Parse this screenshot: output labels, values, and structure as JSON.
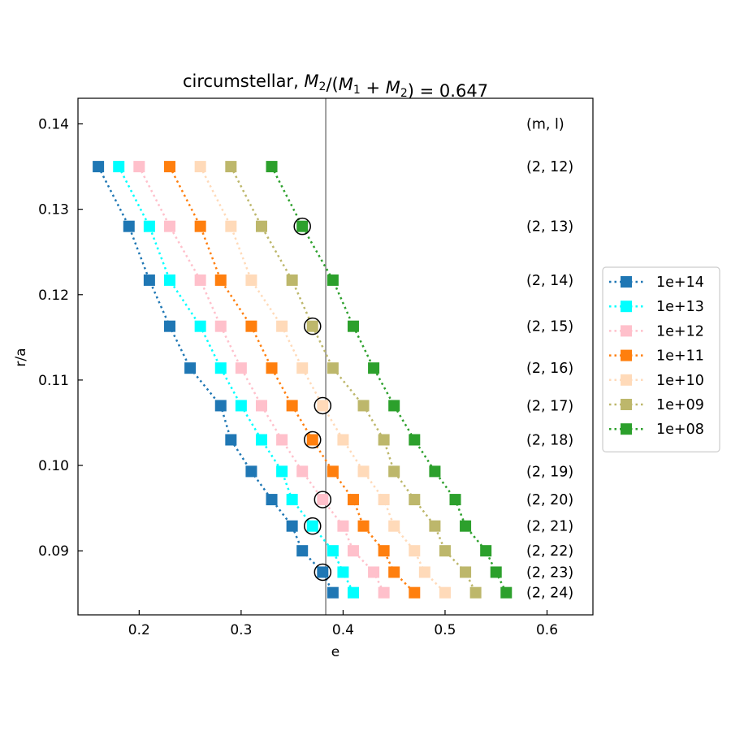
{
  "chart_data": {
    "type": "scatter",
    "title_prefix": "circumstellar, ",
    "title_fraction": "M",
    "title": "circumstellar, M₂/(M₁ + M₂) = 0.647",
    "xlabel": "e",
    "ylabel": "r/a",
    "xlim": [
      0.14,
      0.645
    ],
    "ylim": [
      0.0825,
      0.143
    ],
    "xticks": [
      "0.2",
      "0.3",
      "0.4",
      "0.5",
      "0.6"
    ],
    "yticks": [
      "0.09",
      "0.10",
      "0.11",
      "0.12",
      "0.13",
      "0.14"
    ],
    "vertical_line_x": 0.383,
    "grid": false,
    "legend_position": "outside-right",
    "row_labels_header": "(m, l)",
    "rows": [
      {
        "label": "(2, 12)",
        "y": 0.135
      },
      {
        "label": "(2, 13)",
        "y": 0.128
      },
      {
        "label": "(2, 14)",
        "y": 0.1217
      },
      {
        "label": "(2, 15)",
        "y": 0.1163
      },
      {
        "label": "(2, 16)",
        "y": 0.1114
      },
      {
        "label": "(2, 17)",
        "y": 0.107
      },
      {
        "label": "(2, 18)",
        "y": 0.103
      },
      {
        "label": "(2, 19)",
        "y": 0.0993
      },
      {
        "label": "(2, 20)",
        "y": 0.096
      },
      {
        "label": "(2, 21)",
        "y": 0.0929
      },
      {
        "label": "(2, 22)",
        "y": 0.09
      },
      {
        "label": "(2, 23)",
        "y": 0.0875
      },
      {
        "label": "(2, 24)",
        "y": 0.0851
      }
    ],
    "series": [
      {
        "name": "1e+14",
        "color": "#1f77b4",
        "x": [
          0.16,
          0.19,
          0.21,
          0.23,
          0.25,
          0.28,
          0.29,
          0.31,
          0.33,
          0.35,
          0.36,
          0.38,
          0.39
        ]
      },
      {
        "name": "1e+13",
        "color": "#00ffff",
        "x": [
          0.18,
          0.21,
          0.23,
          0.26,
          0.28,
          0.3,
          0.32,
          0.34,
          0.35,
          0.37,
          0.39,
          0.4,
          0.41
        ]
      },
      {
        "name": "1e+12",
        "color": "#ffc0cb",
        "x": [
          0.2,
          0.23,
          0.26,
          0.28,
          0.3,
          0.32,
          0.34,
          0.36,
          0.38,
          0.4,
          0.41,
          0.43,
          0.44
        ]
      },
      {
        "name": "1e+11",
        "color": "#ff7f0e",
        "x": [
          0.23,
          0.26,
          0.28,
          0.31,
          0.33,
          0.35,
          0.37,
          0.39,
          0.41,
          0.42,
          0.44,
          0.45,
          0.47
        ]
      },
      {
        "name": "1e+10",
        "color": "#ffdab9",
        "x": [
          0.26,
          0.29,
          0.31,
          0.34,
          0.36,
          0.38,
          0.4,
          0.42,
          0.44,
          0.45,
          0.47,
          0.48,
          0.5
        ]
      },
      {
        "name": "1e+09",
        "color": "#bdb76b",
        "x": [
          0.29,
          0.32,
          0.35,
          0.37,
          0.39,
          0.42,
          0.44,
          0.45,
          0.47,
          0.49,
          0.5,
          0.52,
          0.53
        ]
      },
      {
        "name": "1e+08",
        "color": "#2ca02c",
        "x": [
          0.33,
          0.36,
          0.39,
          0.41,
          0.43,
          0.45,
          0.47,
          0.49,
          0.51,
          0.52,
          0.54,
          0.55,
          0.56
        ]
      }
    ],
    "circled_points": [
      {
        "x": 0.36,
        "y": 0.128
      },
      {
        "x": 0.37,
        "y": 0.1163
      },
      {
        "x": 0.38,
        "y": 0.107
      },
      {
        "x": 0.37,
        "y": 0.103
      },
      {
        "x": 0.38,
        "y": 0.096
      },
      {
        "x": 0.37,
        "y": 0.0929
      },
      {
        "x": 0.38,
        "y": 0.0875
      }
    ]
  }
}
